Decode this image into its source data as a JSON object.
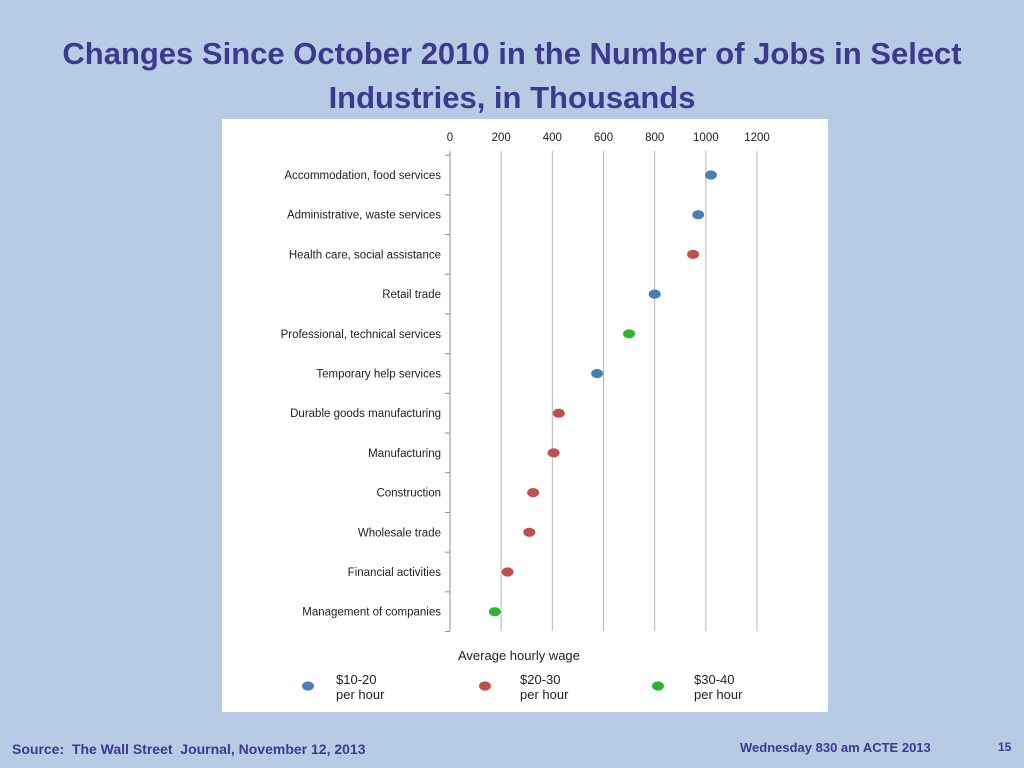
{
  "slide": {
    "title": "Changes Since October 2010 in the Number of Jobs in Select Industries, in Thousands",
    "source": "Source:  The Wall Street  Journal, November 12, 2013",
    "event": "Wednesday 830 am ACTE 2013",
    "page_number": "15"
  },
  "colors": {
    "background": "#b7cce4",
    "title": "#3b3a8f",
    "wage_10_20": "#4a7ebb",
    "wage_20_30": "#c0504d",
    "wage_30_40": "#2db52d",
    "grid": "#b5b5b5"
  },
  "chart_data": {
    "type": "scatter",
    "title": "Changes Since October 2010 in the Number of Jobs in Select Industries, in Thousands",
    "xlim": [
      0,
      1200
    ],
    "x_ticks": [
      "0",
      "200",
      "400",
      "600",
      "800",
      "1000",
      "1200"
    ],
    "grid": true,
    "legend_title": "Average  hourly wage",
    "legend_position": "bottom",
    "series": [
      {
        "name": "$10-20 per hour",
        "label_lines": [
          "$10-20",
          "per hour"
        ],
        "color": "#4a7ebb"
      },
      {
        "name": "$20-30 per hour",
        "label_lines": [
          "$20-30",
          "per hour"
        ],
        "color": "#c0504d"
      },
      {
        "name": "$30-40 per hour",
        "label_lines": [
          "$30-40",
          "per hour"
        ],
        "color": "#2db52d"
      }
    ],
    "points": [
      {
        "category": "Accommodation, food services",
        "value": 1020,
        "series": 0
      },
      {
        "category": "Administrative, waste services",
        "value": 970,
        "series": 0
      },
      {
        "category": "Health care, social assistance",
        "value": 950,
        "series": 1
      },
      {
        "category": "Retail trade",
        "value": 800,
        "series": 0
      },
      {
        "category": "Professional, technical services",
        "value": 700,
        "series": 2
      },
      {
        "category": "Temporary help services",
        "value": 575,
        "series": 0
      },
      {
        "category": "Durable goods manufacturing",
        "value": 425,
        "series": 1
      },
      {
        "category": "Manufacturing",
        "value": 405,
        "series": 1
      },
      {
        "category": "Construction",
        "value": 325,
        "series": 1
      },
      {
        "category": "Wholesale trade",
        "value": 310,
        "series": 1
      },
      {
        "category": "Financial activities",
        "value": 225,
        "series": 1
      },
      {
        "category": "Management of companies",
        "value": 175,
        "series": 2
      }
    ]
  }
}
